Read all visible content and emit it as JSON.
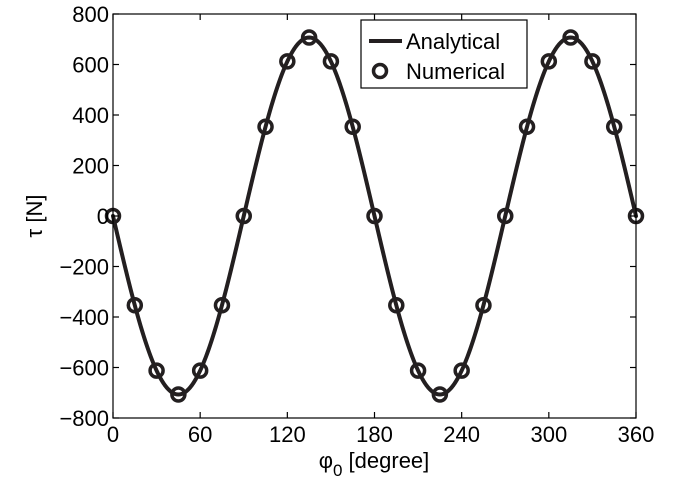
{
  "chart_data": {
    "type": "line",
    "xlabel": "φ",
    "xlabel_sub": "0",
    "xlabel_unit": " [degree]",
    "ylabel": "τ [N]",
    "xlim": [
      0,
      360
    ],
    "ylim": [
      -800,
      800
    ],
    "x_ticks": [
      0,
      60,
      120,
      180,
      240,
      300,
      360
    ],
    "x_tick_labels": [
      "0",
      "60",
      "120",
      "180",
      "240",
      "300",
      "360"
    ],
    "y_ticks": [
      -800,
      -600,
      -400,
      -200,
      0,
      200,
      400,
      600,
      800
    ],
    "y_tick_labels": [
      "−800",
      "−600",
      "−400",
      "−200",
      "0",
      "200",
      "400",
      "600",
      "800"
    ],
    "grid": false,
    "legend_position": "top-right",
    "series": [
      {
        "name": "Analytical",
        "style": "line",
        "color": "#231f20",
        "function": "-707 * sin(2x)",
        "x": [
          0,
          15,
          30,
          45,
          60,
          75,
          90,
          105,
          120,
          135,
          150,
          165,
          180,
          195,
          210,
          225,
          240,
          255,
          270,
          285,
          300,
          315,
          330,
          345,
          360
        ],
        "y": [
          0,
          -353.5,
          -612.3,
          -707,
          -612.3,
          -353.5,
          0,
          353.5,
          612.3,
          707,
          612.3,
          353.5,
          0,
          -353.5,
          -612.3,
          -707,
          -612.3,
          -353.5,
          0,
          353.5,
          612.3,
          707,
          612.3,
          353.5,
          0
        ]
      },
      {
        "name": "Numerical",
        "style": "markers",
        "marker": "open-circle",
        "color": "#231f20",
        "x": [
          0,
          15,
          30,
          45,
          60,
          75,
          90,
          105,
          120,
          135,
          150,
          165,
          180,
          195,
          210,
          225,
          240,
          255,
          270,
          285,
          300,
          315,
          330,
          345,
          360
        ],
        "y": [
          0,
          -353.5,
          -612.3,
          -707,
          -612.3,
          -353.5,
          0,
          353.5,
          612.3,
          707,
          612.3,
          353.5,
          0,
          -353.5,
          -612.3,
          -707,
          -612.3,
          -353.5,
          0,
          353.5,
          612.3,
          707,
          612.3,
          353.5,
          0
        ]
      }
    ]
  }
}
